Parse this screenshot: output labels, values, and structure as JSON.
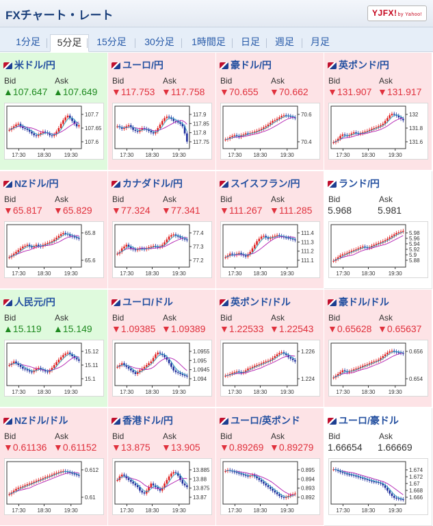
{
  "header": {
    "title": "FXチャート・レート",
    "logo": "YJFX!",
    "logo_sub": "by Yahoo!"
  },
  "tabs": [
    {
      "label": "1分足",
      "active": false
    },
    {
      "label": "5分足",
      "active": true
    },
    {
      "label": "15分足",
      "active": false
    },
    {
      "label": "30分足",
      "active": false
    },
    {
      "label": "1時間足",
      "active": false
    },
    {
      "label": "日足",
      "active": false
    },
    {
      "label": "週足",
      "active": false
    },
    {
      "label": "月足",
      "active": false
    }
  ],
  "labels": {
    "bid": "Bid",
    "ask": "Ask"
  },
  "x_ticks": [
    "17:30",
    "18:30",
    "19:30"
  ],
  "colors": {
    "up_bg": "#dffadd",
    "down_bg": "#fde3e6",
    "up_text": "#1f8a20",
    "down_text": "#e0303c",
    "candle_up": "#e02020",
    "candle_down": "#1c2c9c",
    "ma_short": "#2aa0c0",
    "ma_long": "#b01cb0"
  },
  "pairs": [
    {
      "name": "米ドル/円",
      "dir": "up",
      "bid": "▲107.647",
      "ask": "▲107.649",
      "y_ticks": [
        "107.7",
        "107.65",
        "107.6"
      ],
      "series": [
        0.45,
        0.5,
        0.55,
        0.6,
        0.62,
        0.55,
        0.5,
        0.48,
        0.45,
        0.4,
        0.35,
        0.3,
        0.28,
        0.32,
        0.36,
        0.4,
        0.38,
        0.35,
        0.3,
        0.28,
        0.32,
        0.4,
        0.5,
        0.62,
        0.72,
        0.8,
        0.85,
        0.78,
        0.7,
        0.62,
        0.55,
        0.58
      ]
    },
    {
      "name": "ユーロ/円",
      "dir": "down",
      "bid": "▼117.753",
      "ask": "▼117.758",
      "y_ticks": [
        "117.9",
        "117.85",
        "117.8",
        "117.75"
      ],
      "series": [
        0.55,
        0.52,
        0.48,
        0.5,
        0.55,
        0.58,
        0.52,
        0.45,
        0.42,
        0.4,
        0.45,
        0.5,
        0.48,
        0.45,
        0.42,
        0.38,
        0.35,
        0.4,
        0.5,
        0.6,
        0.7,
        0.78,
        0.82,
        0.8,
        0.76,
        0.7,
        0.68,
        0.66,
        0.62,
        0.55,
        0.35,
        0.12
      ]
    },
    {
      "name": "豪ドル/円",
      "dir": "down",
      "bid": "▼70.655",
      "ask": "▼70.662",
      "y_ticks": [
        "70.6",
        "70.4"
      ],
      "series": [
        0.18,
        0.2,
        0.25,
        0.28,
        0.3,
        0.28,
        0.25,
        0.3,
        0.32,
        0.35,
        0.34,
        0.36,
        0.38,
        0.4,
        0.42,
        0.45,
        0.48,
        0.52,
        0.55,
        0.6,
        0.65,
        0.7,
        0.72,
        0.76,
        0.8,
        0.84,
        0.86,
        0.85,
        0.84,
        0.82,
        0.8,
        0.78
      ]
    },
    {
      "name": "英ポンド/円",
      "dir": "down",
      "bid": "▼131.907",
      "ask": "▼131.917",
      "y_ticks": [
        "132",
        "131.8",
        "131.6"
      ],
      "series": [
        0.1,
        0.14,
        0.2,
        0.28,
        0.32,
        0.3,
        0.28,
        0.3,
        0.35,
        0.38,
        0.36,
        0.34,
        0.35,
        0.38,
        0.4,
        0.42,
        0.45,
        0.48,
        0.5,
        0.52,
        0.55,
        0.58,
        0.62,
        0.7,
        0.78,
        0.86,
        0.9,
        0.88,
        0.85,
        0.8,
        0.76,
        0.72
      ]
    },
    {
      "name": "NZドル/円",
      "dir": "down",
      "bid": "▼65.817",
      "ask": "▼65.829",
      "y_ticks": [
        "65.8",
        "65.6"
      ],
      "series": [
        0.2,
        0.25,
        0.3,
        0.35,
        0.4,
        0.45,
        0.5,
        0.52,
        0.55,
        0.5,
        0.48,
        0.5,
        0.55,
        0.52,
        0.5,
        0.55,
        0.58,
        0.6,
        0.62,
        0.65,
        0.7,
        0.75,
        0.8,
        0.85,
        0.88,
        0.86,
        0.84,
        0.8,
        0.78,
        0.76,
        0.74,
        0.72
      ]
    },
    {
      "name": "カナダドル/円",
      "dir": "down",
      "bid": "▼77.324",
      "ask": "▼77.341",
      "y_ticks": [
        "77.4",
        "77.3",
        "77.2"
      ],
      "series": [
        0.3,
        0.35,
        0.45,
        0.5,
        0.55,
        0.5,
        0.45,
        0.42,
        0.4,
        0.42,
        0.45,
        0.44,
        0.42,
        0.45,
        0.48,
        0.5,
        0.52,
        0.5,
        0.48,
        0.5,
        0.55,
        0.62,
        0.7,
        0.78,
        0.82,
        0.84,
        0.8,
        0.78,
        0.75,
        0.72,
        0.7,
        0.68
      ]
    },
    {
      "name": "スイスフラン/円",
      "dir": "down",
      "bid": "▼111.267",
      "ask": "▼111.285",
      "y_ticks": [
        "111.4",
        "111.3",
        "111.2",
        "111.1"
      ],
      "series": [
        0.2,
        0.25,
        0.3,
        0.28,
        0.26,
        0.3,
        0.32,
        0.28,
        0.25,
        0.22,
        0.28,
        0.35,
        0.45,
        0.55,
        0.65,
        0.72,
        0.78,
        0.8,
        0.75,
        0.72,
        0.74,
        0.78,
        0.8,
        0.82,
        0.8,
        0.78,
        0.76,
        0.75,
        0.74,
        0.72,
        0.7,
        0.68
      ]
    },
    {
      "name": "ランド/円",
      "dir": "flat",
      "bid": "5.968",
      "ask": "5.981",
      "y_ticks": [
        "5.98",
        "5.96",
        "5.94",
        "5.92",
        "5.9",
        "5.88"
      ],
      "series": [
        0.1,
        0.15,
        0.2,
        0.25,
        0.28,
        0.3,
        0.32,
        0.35,
        0.38,
        0.4,
        0.42,
        0.45,
        0.48,
        0.5,
        0.48,
        0.46,
        0.48,
        0.52,
        0.55,
        0.58,
        0.6,
        0.62,
        0.65,
        0.68,
        0.72,
        0.76,
        0.8,
        0.84,
        0.88,
        0.9,
        0.92,
        0.94
      ]
    },
    {
      "name": "人民元/円",
      "dir": "up",
      "bid": "▲15.119",
      "ask": "▲15.149",
      "y_ticks": [
        "15.12",
        "15.11",
        "15.1"
      ],
      "series": [
        0.5,
        0.55,
        0.6,
        0.55,
        0.5,
        0.45,
        0.4,
        0.38,
        0.35,
        0.32,
        0.3,
        0.35,
        0.4,
        0.42,
        0.38,
        0.35,
        0.32,
        0.3,
        0.35,
        0.42,
        0.5,
        0.58,
        0.65,
        0.72,
        0.78,
        0.82,
        0.85,
        0.8,
        0.75,
        0.7,
        0.66,
        0.62
      ]
    },
    {
      "name": "ユーロ/ドル",
      "dir": "down",
      "bid": "▼1.09385",
      "ask": "▼1.09389",
      "y_ticks": [
        "1.0955",
        "1.095",
        "1.0945",
        "1.094"
      ],
      "series": [
        0.45,
        0.5,
        0.55,
        0.5,
        0.45,
        0.4,
        0.35,
        0.3,
        0.25,
        0.3,
        0.35,
        0.4,
        0.45,
        0.5,
        0.55,
        0.6,
        0.7,
        0.8,
        0.85,
        0.82,
        0.78,
        0.72,
        0.65,
        0.55,
        0.45,
        0.35,
        0.3,
        0.28,
        0.25,
        0.22,
        0.2,
        0.18
      ]
    },
    {
      "name": "英ポンド/ドル",
      "dir": "down",
      "bid": "▼1.22533",
      "ask": "▼1.22543",
      "y_ticks": [
        "1.226",
        "1.224"
      ],
      "series": [
        0.2,
        0.22,
        0.25,
        0.28,
        0.3,
        0.32,
        0.3,
        0.28,
        0.3,
        0.35,
        0.4,
        0.42,
        0.45,
        0.48,
        0.5,
        0.52,
        0.55,
        0.58,
        0.6,
        0.62,
        0.65,
        0.7,
        0.75,
        0.8,
        0.84,
        0.86,
        0.82,
        0.78,
        0.72,
        0.68,
        0.64,
        0.6
      ]
    },
    {
      "name": "豪ドル/ドル",
      "dir": "down",
      "bid": "▼0.65628",
      "ask": "▼0.65637",
      "y_ticks": [
        "0.656",
        "0.654"
      ],
      "series": [
        0.15,
        0.2,
        0.25,
        0.3,
        0.35,
        0.33,
        0.3,
        0.32,
        0.35,
        0.38,
        0.4,
        0.42,
        0.45,
        0.48,
        0.5,
        0.52,
        0.55,
        0.58,
        0.6,
        0.62,
        0.65,
        0.7,
        0.75,
        0.8,
        0.85,
        0.88,
        0.9,
        0.88,
        0.86,
        0.85,
        0.84,
        0.82
      ]
    },
    {
      "name": "NZドル/ドル",
      "dir": "down",
      "bid": "▼0.61136",
      "ask": "▼0.61152",
      "y_ticks": [
        "0.612",
        "0.61"
      ],
      "series": [
        0.2,
        0.25,
        0.3,
        0.35,
        0.38,
        0.4,
        0.42,
        0.45,
        0.48,
        0.5,
        0.52,
        0.55,
        0.58,
        0.6,
        0.62,
        0.65,
        0.68,
        0.7,
        0.72,
        0.75,
        0.78,
        0.8,
        0.82,
        0.84,
        0.85,
        0.84,
        0.82,
        0.8,
        0.78,
        0.76,
        0.74,
        0.72
      ]
    },
    {
      "name": "香港ドル/円",
      "dir": "down",
      "bid": "▼13.875",
      "ask": "▼13.905",
      "y_ticks": [
        "13.885",
        "13.88",
        "13.875",
        "13.87"
      ],
      "series": [
        0.6,
        0.7,
        0.75,
        0.72,
        0.65,
        0.6,
        0.55,
        0.5,
        0.45,
        0.4,
        0.3,
        0.25,
        0.22,
        0.3,
        0.4,
        0.5,
        0.45,
        0.4,
        0.35,
        0.3,
        0.38,
        0.5,
        0.6,
        0.7,
        0.78,
        0.82,
        0.8,
        0.72,
        0.6,
        0.5,
        0.45,
        0.4
      ]
    },
    {
      "name": "ユーロ/英ポンド",
      "dir": "down",
      "bid": "▼0.89269",
      "ask": "▼0.89279",
      "y_ticks": [
        "0.895",
        "0.894",
        "0.893",
        "0.892"
      ],
      "series": [
        0.85,
        0.88,
        0.86,
        0.84,
        0.82,
        0.8,
        0.78,
        0.76,
        0.74,
        0.72,
        0.7,
        0.72,
        0.74,
        0.7,
        0.65,
        0.6,
        0.55,
        0.5,
        0.45,
        0.4,
        0.35,
        0.3,
        0.25,
        0.2,
        0.15,
        0.12,
        0.1,
        0.12,
        0.15,
        0.18,
        0.2,
        0.22
      ]
    },
    {
      "name": "ユーロ/豪ドル",
      "dir": "flat",
      "bid": "1.66654",
      "ask": "1.66669",
      "y_ticks": [
        "1.674",
        "1.672",
        "1.67",
        "1.668",
        "1.666"
      ],
      "series": [
        0.9,
        0.88,
        0.85,
        0.82,
        0.8,
        0.78,
        0.76,
        0.75,
        0.74,
        0.72,
        0.7,
        0.68,
        0.66,
        0.64,
        0.62,
        0.6,
        0.58,
        0.56,
        0.55,
        0.54,
        0.52,
        0.5,
        0.45,
        0.38,
        0.3,
        0.22,
        0.15,
        0.1,
        0.08,
        0.07,
        0.06,
        0.05
      ]
    }
  ]
}
